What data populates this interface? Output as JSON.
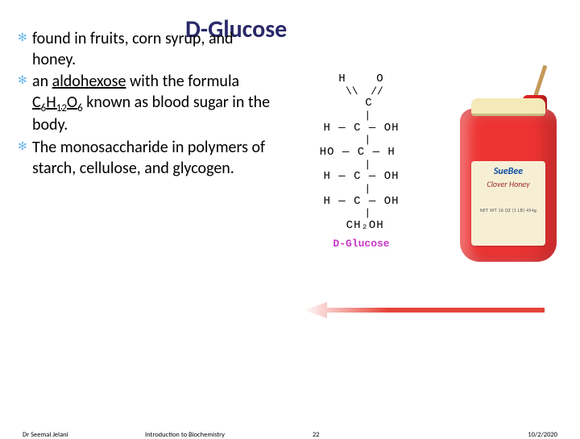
{
  "title": "D-Glucose",
  "bullets": [
    {
      "html": " found in fruits, corn syrup, and honey."
    },
    {
      "html": "an <span class='underline'>aldohexose</span> with the formula <span class='underline'>C<span class='sub'>6</span>H<span class='sub'>12</span>O<span class='sub'>6</span></span> known as blood sugar in the body."
    },
    {
      "html": "The monosaccharide in polymers of starch, cellulose, and glycogen."
    }
  ],
  "structure": {
    "rows": [
      "H    O",
      " \\\\  //",
      "  C",
      "  |",
      "H — C — OH",
      "  |",
      "HO — C — H ",
      "  |",
      "H — C — OH",
      "  |",
      "H — C — OH",
      "  |",
      " CH₂OH"
    ],
    "label": "D-Glucose",
    "label_color": "#c838c8"
  },
  "jar": {
    "brand": "SueBee",
    "kind": "Clover Honey",
    "small": "NET WT 16 OZ (1 LB) 454g"
  },
  "footer": {
    "author": "Dr Seemal Jelani",
    "course": "Introduction to Biochemistry",
    "page": "22",
    "date": "10/2/2020"
  },
  "colors": {
    "title": "#2a2a6a",
    "bullet_icon": "#6fb8e8",
    "arrow": "#e42e22",
    "honey": "#e33",
    "background": "#ffffff"
  }
}
